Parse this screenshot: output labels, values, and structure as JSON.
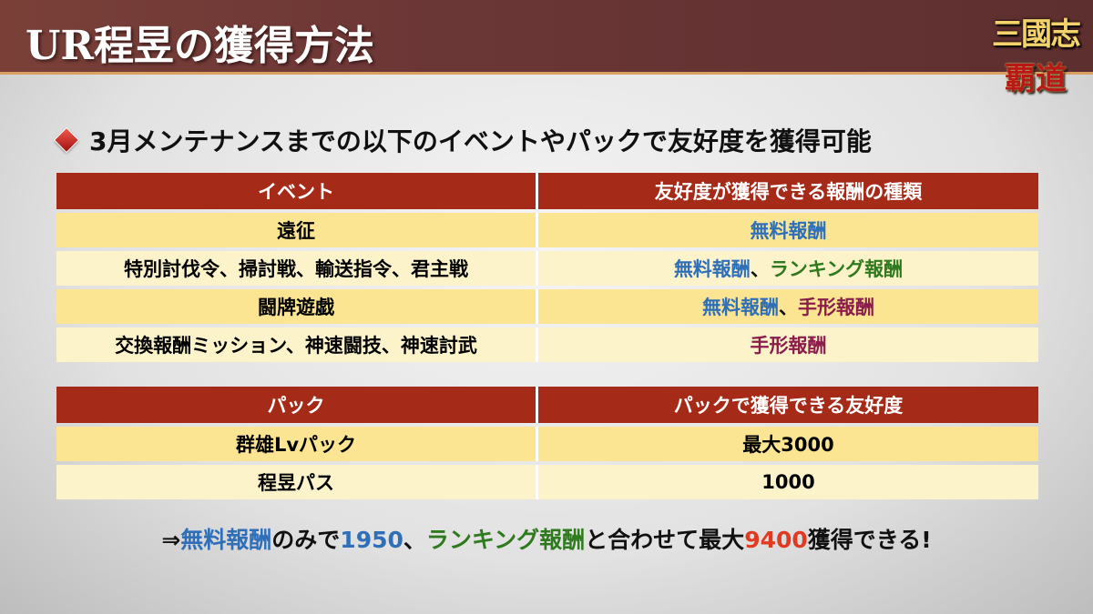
{
  "header": {
    "title": "UR程昱の獲得方法",
    "logo_text": "三國志 覇道"
  },
  "subheading": {
    "icon": "red-diamond-icon",
    "text": "3月メンテナンスまでの以下のイベントやパックで友好度を獲得可能"
  },
  "event_table": {
    "headers": [
      "イベント",
      "友好度が獲得できる報酬の種類"
    ],
    "rows": [
      {
        "event": "遠征",
        "rewards": [
          {
            "text": "無料報酬",
            "color": "#2f6fb8"
          }
        ]
      },
      {
        "event": "特別討伐令、掃討戦、輸送指令、君主戦",
        "rewards": [
          {
            "text": "無料報酬",
            "color": "#2f6fb8"
          },
          {
            "text": "、",
            "color": "#111111"
          },
          {
            "text": "ランキング報酬",
            "color": "#2f7a1e"
          }
        ]
      },
      {
        "event": "闘牌遊戯",
        "rewards": [
          {
            "text": "無料報酬",
            "color": "#2f6fb8"
          },
          {
            "text": "、",
            "color": "#111111"
          },
          {
            "text": "手形報酬",
            "color": "#8a1d4a"
          }
        ]
      },
      {
        "event": "交換報酬ミッション、神速闘技、神速討武",
        "rewards": [
          {
            "text": "手形報酬",
            "color": "#8a1d4a"
          }
        ]
      }
    ]
  },
  "pack_table": {
    "headers": [
      "パック",
      "パックで獲得できる友好度"
    ],
    "rows": [
      {
        "pack": "群雄Lvパック",
        "amount": "最大3000"
      },
      {
        "pack": "程昱パス",
        "amount": "1000"
      }
    ]
  },
  "summary": [
    {
      "text": "⇒",
      "color": "#111111"
    },
    {
      "text": "無料報酬",
      "color": "#2f6fb8"
    },
    {
      "text": "のみで",
      "color": "#111111"
    },
    {
      "text": "1950",
      "color": "#2f6fb8"
    },
    {
      "text": "、",
      "color": "#111111"
    },
    {
      "text": "ランキング報酬",
      "color": "#2f7a1e"
    },
    {
      "text": "と合わせて最大",
      "color": "#111111"
    },
    {
      "text": "9400",
      "color": "#e03a22"
    },
    {
      "text": "獲得できる!",
      "color": "#111111"
    }
  ],
  "colors": {
    "header_bg": "#6b3636",
    "table_header": "#a52a18",
    "row_a": "#fbe593",
    "row_b": "#fcf3cb"
  }
}
